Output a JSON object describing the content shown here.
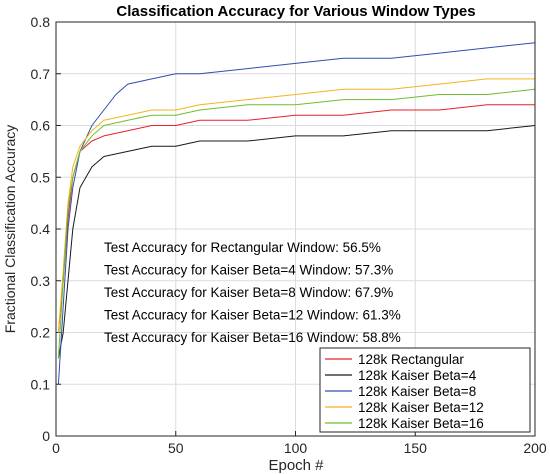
{
  "chart_data": {
    "type": "line",
    "title": "Classification Accuracy for Various Window Types",
    "xlabel": "Epoch #",
    "ylabel": "Fractional Classification Accuracy",
    "xlim": [
      0,
      200
    ],
    "ylim": [
      0,
      0.8
    ],
    "xticks": [
      "0",
      "50",
      "100",
      "150",
      "200"
    ],
    "yticks": [
      "0",
      "0.1",
      "0.2",
      "0.3",
      "0.4",
      "0.5",
      "0.6",
      "0.7",
      "0.8"
    ],
    "grid": true,
    "legend_position": "bottom-right",
    "annotations": [
      "Test Accuracy for Rectangular Window: 56.5%",
      "Test Accuracy for Kaiser Beta=4 Window: 57.3%",
      "Test Accuracy for Kaiser Beta=8 Window: 67.9%",
      "Test Accuracy for Kaiser Beta=12 Window: 61.3%",
      "Test Accuracy for Kaiser Beta=16 Window: 58.8%"
    ],
    "series": [
      {
        "name": "128k Rectangular",
        "color": "#e8202a",
        "x": [
          1,
          3,
          5,
          7,
          10,
          15,
          20,
          30,
          40,
          50,
          60,
          80,
          100,
          120,
          140,
          160,
          180,
          200
        ],
        "y": [
          0.2,
          0.3,
          0.42,
          0.5,
          0.55,
          0.57,
          0.58,
          0.59,
          0.6,
          0.6,
          0.61,
          0.61,
          0.62,
          0.62,
          0.63,
          0.63,
          0.64,
          0.64
        ]
      },
      {
        "name": "128k Kaiser Beta=4",
        "color": "#1a1a1a",
        "x": [
          1,
          3,
          5,
          7,
          10,
          15,
          20,
          30,
          40,
          50,
          60,
          80,
          100,
          120,
          140,
          160,
          180,
          200
        ],
        "y": [
          0.15,
          0.2,
          0.3,
          0.4,
          0.48,
          0.52,
          0.54,
          0.55,
          0.56,
          0.56,
          0.57,
          0.57,
          0.58,
          0.58,
          0.59,
          0.59,
          0.59,
          0.6
        ]
      },
      {
        "name": "128k Kaiser Beta=8",
        "color": "#2d4fb0",
        "x": [
          1,
          3,
          5,
          7,
          10,
          15,
          20,
          25,
          30,
          40,
          50,
          60,
          80,
          100,
          120,
          140,
          160,
          180,
          200
        ],
        "y": [
          0.1,
          0.25,
          0.4,
          0.48,
          0.55,
          0.6,
          0.63,
          0.66,
          0.68,
          0.69,
          0.7,
          0.7,
          0.71,
          0.72,
          0.73,
          0.73,
          0.74,
          0.75,
          0.76
        ]
      },
      {
        "name": "128k Kaiser Beta=12",
        "color": "#f2b51c",
        "x": [
          1,
          3,
          5,
          7,
          10,
          15,
          20,
          30,
          40,
          50,
          60,
          80,
          100,
          120,
          140,
          160,
          180,
          200
        ],
        "y": [
          0.2,
          0.32,
          0.45,
          0.52,
          0.56,
          0.59,
          0.61,
          0.62,
          0.63,
          0.63,
          0.64,
          0.65,
          0.66,
          0.67,
          0.67,
          0.68,
          0.69,
          0.69
        ]
      },
      {
        "name": "128k Kaiser Beta=16",
        "color": "#6dbf2e",
        "x": [
          1,
          3,
          5,
          7,
          10,
          15,
          20,
          30,
          40,
          50,
          60,
          80,
          100,
          120,
          140,
          160,
          180,
          200
        ],
        "y": [
          0.15,
          0.3,
          0.44,
          0.5,
          0.55,
          0.58,
          0.6,
          0.61,
          0.62,
          0.62,
          0.63,
          0.64,
          0.64,
          0.65,
          0.65,
          0.66,
          0.66,
          0.67
        ]
      }
    ]
  }
}
